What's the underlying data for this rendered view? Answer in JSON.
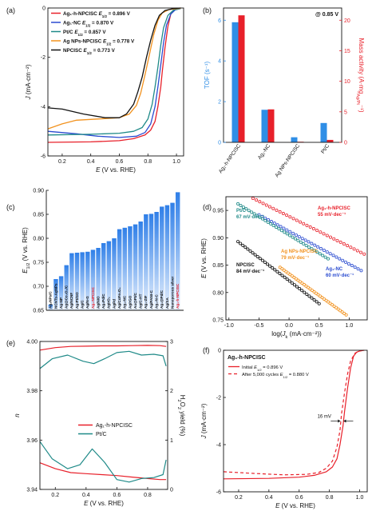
{
  "chart_data": [
    {
      "id": "a",
      "panel_label": "(a)",
      "type": "line",
      "xlabel_main": "E",
      "xlabel_rest": " (V vs. RHE)",
      "ylabel_main": "J",
      "ylabel_rest": " (mA·cm⁻²)",
      "xlim": [
        0.1,
        1.05
      ],
      "ylim": [
        -6,
        0
      ],
      "xticks": [
        0.2,
        0.4,
        0.6,
        0.8,
        1.0
      ],
      "xtick_labels": [
        "0.2",
        "0.4",
        "0.6",
        "0.8",
        "1.0"
      ],
      "yticks": [
        0,
        -2,
        -4,
        -6
      ],
      "ytick_labels": [
        "0",
        "-2",
        "-4",
        "-6"
      ],
      "legend": "top-left",
      "series": [
        {
          "name": "Ag₁-h-NPCISC",
          "e_label": "E",
          "e_sub": "1/2",
          "e_value": " = 0.896 V",
          "color": "#e8202a",
          "points": [
            [
              0.1,
              -5.45
            ],
            [
              0.4,
              -5.43
            ],
            [
              0.6,
              -5.38
            ],
            [
              0.7,
              -5.3
            ],
            [
              0.78,
              -5.15
            ],
            [
              0.82,
              -4.95
            ],
            [
              0.85,
              -4.6
            ],
            [
              0.87,
              -4.0
            ],
            [
              0.89,
              -3.2
            ],
            [
              0.9,
              -2.6
            ],
            [
              0.92,
              -1.6
            ],
            [
              0.94,
              -0.75
            ],
            [
              0.96,
              -0.25
            ],
            [
              0.98,
              -0.08
            ],
            [
              1.0,
              -0.03
            ],
            [
              1.03,
              0.0
            ]
          ]
        },
        {
          "name": "Ag₁-NC",
          "e_label": "E",
          "e_sub": "1/2",
          "e_value": " = 0.870 V",
          "color": "#2a4bd0",
          "points": [
            [
              0.1,
              -5.0
            ],
            [
              0.3,
              -5.1
            ],
            [
              0.45,
              -5.2
            ],
            [
              0.6,
              -5.25
            ],
            [
              0.72,
              -5.2
            ],
            [
              0.78,
              -5.05
            ],
            [
              0.82,
              -4.7
            ],
            [
              0.85,
              -4.0
            ],
            [
              0.87,
              -3.2
            ],
            [
              0.89,
              -2.3
            ],
            [
              0.91,
              -1.4
            ],
            [
              0.93,
              -0.7
            ],
            [
              0.96,
              -0.25
            ],
            [
              0.99,
              -0.08
            ],
            [
              1.03,
              -0.02
            ]
          ]
        },
        {
          "name": "Pt/C",
          "e_label": "E",
          "e_sub": "1/2",
          "e_value": " = 0.857 V",
          "color": "#1f8a88",
          "points": [
            [
              0.1,
              -5.15
            ],
            [
              0.4,
              -5.12
            ],
            [
              0.6,
              -5.08
            ],
            [
              0.7,
              -5.0
            ],
            [
              0.76,
              -4.85
            ],
            [
              0.8,
              -4.5
            ],
            [
              0.83,
              -3.9
            ],
            [
              0.85,
              -3.2
            ],
            [
              0.87,
              -2.4
            ],
            [
              0.89,
              -1.5
            ],
            [
              0.91,
              -0.8
            ],
            [
              0.94,
              -0.3
            ],
            [
              0.98,
              -0.08
            ],
            [
              1.03,
              -0.02
            ]
          ]
        },
        {
          "name": "Ag NPs-NPCISC",
          "e_label": "E",
          "e_sub": "1/2",
          "e_value": " = 0.778 V",
          "color": "#f2921e",
          "points": [
            [
              0.1,
              -4.9
            ],
            [
              0.2,
              -4.7
            ],
            [
              0.3,
              -4.55
            ],
            [
              0.45,
              -4.5
            ],
            [
              0.6,
              -4.45
            ],
            [
              0.67,
              -4.3
            ],
            [
              0.72,
              -3.95
            ],
            [
              0.75,
              -3.45
            ],
            [
              0.78,
              -2.7
            ],
            [
              0.81,
              -1.9
            ],
            [
              0.84,
              -1.1
            ],
            [
              0.87,
              -0.5
            ],
            [
              0.9,
              -0.2
            ],
            [
              0.95,
              -0.06
            ],
            [
              1.03,
              -0.01
            ]
          ]
        },
        {
          "name": "NPCISC",
          "e_label": "E",
          "e_sub": "1/2",
          "e_value": " = 0.773 V",
          "color": "#111111",
          "points": [
            [
              0.1,
              -4.05
            ],
            [
              0.2,
              -4.1
            ],
            [
              0.35,
              -4.3
            ],
            [
              0.5,
              -4.45
            ],
            [
              0.6,
              -4.45
            ],
            [
              0.65,
              -4.3
            ],
            [
              0.7,
              -3.9
            ],
            [
              0.73,
              -3.4
            ],
            [
              0.76,
              -2.8
            ],
            [
              0.79,
              -2.0
            ],
            [
              0.82,
              -1.3
            ],
            [
              0.85,
              -0.7
            ],
            [
              0.88,
              -0.3
            ],
            [
              0.92,
              -0.1
            ],
            [
              0.98,
              -0.02
            ],
            [
              1.03,
              0.0
            ]
          ]
        }
      ]
    },
    {
      "id": "b",
      "panel_label": "(b)",
      "type": "bar",
      "annotation": "@ 0.85 V",
      "categories": [
        "Ag₁-h-NPCISC",
        "Ag₁-NC",
        "Ag NPs-NPCISC",
        "Pt/C"
      ],
      "ylim_left": [
        0,
        6.6
      ],
      "ylim_right": [
        0,
        22
      ],
      "yticks_left": [
        0,
        2,
        4,
        6
      ],
      "ytick_labels_left": [
        "0",
        "2",
        "4",
        "6"
      ],
      "yticks_right": [
        0,
        5,
        10,
        15,
        20
      ],
      "ytick_labels_right": [
        "0",
        "5",
        "10",
        "15",
        "20"
      ],
      "ylabel_left_main": "TOF",
      "ylabel_left_unit": " (s⁻¹)",
      "ylabel_right_main": "Mass activity",
      "ylabel_right_unit": " (A·mg",
      "ylabel_right_sub": "Ag/Pt",
      "ylabel_right_end": "⁻¹)",
      "series": [
        {
          "name": "TOF",
          "axis": "left",
          "color": "#2f8ee6",
          "values": [
            5.9,
            1.6,
            0.25,
            0.95
          ]
        },
        {
          "name": "Mass activity",
          "axis": "right",
          "color": "#e8202a",
          "values": [
            20.8,
            5.4,
            0.1,
            0.4
          ]
        }
      ],
      "left_axis_color": "#2f8ee6",
      "right_axis_color": "#e8202a"
    },
    {
      "id": "c",
      "panel_label": "(c)",
      "type": "bar",
      "ylabel_main": "E",
      "ylabel_sub": "1/2",
      "ylabel_rest": " (V vs. RHE)",
      "ylim": [
        0.65,
        0.9
      ],
      "yticks": [
        0.65,
        0.7,
        0.75,
        0.8,
        0.85,
        0.9
      ],
      "ytick_labels": [
        "0.65",
        "0.70",
        "0.75",
        "0.80",
        "0.85",
        "0.90"
      ],
      "categories": [
        "Ag₂NPs/C",
        "NCNTs-AgNPs",
        "Ag-NP",
        "Ag@Co₃O₄/C",
        "Ag/NCNF",
        "Ag-Pt/GO",
        "Ag/C",
        "Ag/N-G",
        "Ag₁-NPCISC",
        "Ag/NiO",
        "Ag₂Pd/C",
        "AgIrO₂",
        "AgPd",
        "Ag/CoFe₂O₄",
        "Ag₁-NC",
        "Ag/rGO",
        "Au@Pt/C",
        "Ag/C-HT",
        "Ag₁-ZIF",
        "Ag/PANI-C",
        "Ag₁-N-C",
        "Ag₁@Pd/C",
        "Ag/SA",
        "Nanoporous silver",
        "Ag₁-h-NPCISC"
      ],
      "values": [
        0.662,
        0.715,
        0.721,
        0.744,
        0.769,
        0.77,
        0.771,
        0.772,
        0.776,
        0.78,
        0.79,
        0.794,
        0.8,
        0.819,
        0.822,
        0.825,
        0.829,
        0.835,
        0.85,
        0.851,
        0.855,
        0.866,
        0.869,
        0.874,
        0.896
      ],
      "highlight": [
        "Ag₁-NPCISC",
        "Ag₁-h-NPCISC"
      ],
      "label_color": "#111111",
      "highlight_color": "#e8202a"
    },
    {
      "id": "d",
      "panel_label": "(d)",
      "type": "scatter",
      "xlabel_pre": "log(",
      "xlabel_main": "J",
      "xlabel_sub": "k",
      "xlabel_rest": " (mA·cm⁻²))",
      "ylabel_main": "E",
      "ylabel_rest": " (V vs. RHE)",
      "xlim": [
        -1.05,
        1.3
      ],
      "ylim": [
        0.75,
        0.975
      ],
      "xticks": [
        -1.0,
        -0.5,
        0.0,
        0.5,
        1.0
      ],
      "xtick_labels": [
        "-1.0",
        "-0.5",
        "0.0",
        "0.5",
        "1.0"
      ],
      "yticks": [
        0.75,
        0.8,
        0.85,
        0.9,
        0.95
      ],
      "ytick_labels": [
        "0.75",
        "0.80",
        "0.85",
        "0.90",
        "0.95"
      ],
      "series": [
        {
          "name": "Ag₁-h-NPCISC",
          "slope_label": "55 mV·dec⁻¹",
          "color": "#e8202a",
          "x_range": [
            -0.6,
            1.25
          ],
          "y_start": 0.972,
          "slope": -0.055
        },
        {
          "name": "Ag₁-NC",
          "slope_label": "60 mV·dec⁻¹",
          "color": "#2a4bd0",
          "x_range": [
            -0.5,
            1.2
          ],
          "y_start": 0.942,
          "slope": -0.06
        },
        {
          "name": "Pt/C",
          "slope_label": "67 mV·dec⁻¹",
          "color": "#1f8a88",
          "x_range": [
            -0.85,
            0.65
          ],
          "y_start": 0.962,
          "slope": -0.067
        },
        {
          "name": "Ag NPs-NPCISC",
          "slope_label": "79 mV·dec⁻¹",
          "color": "#f2921e",
          "x_range": [
            -0.15,
            0.95
          ],
          "y_start": 0.846,
          "slope": -0.079
        },
        {
          "name": "NPCISC",
          "slope_label": "84 mV·dec⁻¹",
          "color": "#111111",
          "x_range": [
            -0.85,
            0.5
          ],
          "y_start": 0.893,
          "slope": -0.084
        }
      ]
    },
    {
      "id": "e",
      "panel_label": "(e)",
      "type": "line",
      "xlabel_main": "E",
      "xlabel_rest": " (V vs. RHE)",
      "ylabel_left": "n",
      "ylabel_right_pre": "H",
      "ylabel_right_sub1": "2",
      "ylabel_right_mid": "O",
      "ylabel_right_sub2": "2",
      "ylabel_right_end": " yield (%)",
      "xlim": [
        0.1,
        0.93
      ],
      "ylim_left": [
        3.94,
        4.0
      ],
      "ylim_right": [
        0,
        3
      ],
      "xticks": [
        0.2,
        0.4,
        0.6,
        0.8
      ],
      "xtick_labels": [
        "0.2",
        "0.4",
        "0.6",
        "0.8"
      ],
      "yticks_left": [
        3.94,
        3.96,
        3.98,
        4.0
      ],
      "ytick_labels_left": [
        "3.94",
        "3.96",
        "3.98",
        "4.00"
      ],
      "yticks_right": [
        0,
        1,
        2,
        3
      ],
      "ytick_labels_right": [
        "0",
        "1",
        "2",
        "3"
      ],
      "legend": "lower-left",
      "series": [
        {
          "name": "Ag₁-h-NPCISC",
          "color": "#e8202a",
          "axis_n": [
            [
              0.1,
              3.9965
            ],
            [
              0.2,
              3.9975
            ],
            [
              0.3,
              3.998
            ],
            [
              0.4,
              3.9981
            ],
            [
              0.5,
              3.9982
            ],
            [
              0.6,
              3.9982
            ],
            [
              0.7,
              3.9983
            ],
            [
              0.8,
              3.9984
            ],
            [
              0.88,
              3.9983
            ],
            [
              0.92,
              3.998
            ]
          ],
          "axis_h2o2": [
            [
              0.1,
              0.54
            ],
            [
              0.2,
              0.42
            ],
            [
              0.3,
              0.34
            ],
            [
              0.4,
              0.32
            ],
            [
              0.5,
              0.3
            ],
            [
              0.6,
              0.28
            ],
            [
              0.7,
              0.25
            ],
            [
              0.8,
              0.22
            ],
            [
              0.88,
              0.2
            ],
            [
              0.92,
              0.2
            ]
          ]
        },
        {
          "name": "Pt/C",
          "color": "#1f8a88",
          "axis_n": [
            [
              0.1,
              3.989
            ],
            [
              0.18,
              3.993
            ],
            [
              0.28,
              3.9945
            ],
            [
              0.38,
              3.992
            ],
            [
              0.45,
              3.991
            ],
            [
              0.52,
              3.993
            ],
            [
              0.6,
              3.9955
            ],
            [
              0.68,
              3.996
            ],
            [
              0.76,
              3.9945
            ],
            [
              0.84,
              3.9948
            ],
            [
              0.9,
              3.9942
            ],
            [
              0.92,
              3.99
            ]
          ],
          "axis_h2o2": [
            [
              0.1,
              0.97
            ],
            [
              0.18,
              0.62
            ],
            [
              0.28,
              0.42
            ],
            [
              0.36,
              0.5
            ],
            [
              0.44,
              0.82
            ],
            [
              0.52,
              0.55
            ],
            [
              0.6,
              0.2
            ],
            [
              0.68,
              0.15
            ],
            [
              0.76,
              0.22
            ],
            [
              0.84,
              0.24
            ],
            [
              0.9,
              0.3
            ],
            [
              0.92,
              0.6
            ]
          ]
        }
      ]
    },
    {
      "id": "f",
      "panel_label": "(f)",
      "type": "line",
      "inner_title": "Ag₁-h-NPCISC",
      "xlabel_main": "E",
      "xlabel_rest": " (V vs. RHE)",
      "ylabel_main": "J",
      "ylabel_rest": " (mA·cm⁻²)",
      "xlim": [
        0.1,
        1.05
      ],
      "ylim": [
        -6,
        0
      ],
      "xticks": [
        0.2,
        0.4,
        0.6,
        0.8,
        1.0
      ],
      "xtick_labels": [
        "0.2",
        "0.4",
        "0.6",
        "0.8",
        "1.0"
      ],
      "yticks": [
        0,
        -2,
        -4,
        -6
      ],
      "ytick_labels": [
        "0",
        "-2",
        "-4",
        "-6"
      ],
      "annotation": "16 mV",
      "series": [
        {
          "name": "Initial",
          "e_label": "E",
          "e_sub": "1/2",
          "e_value": " = 0.896 V",
          "color": "#e8202a",
          "dash": "none",
          "points": [
            [
              0.1,
              -5.45
            ],
            [
              0.4,
              -5.43
            ],
            [
              0.6,
              -5.38
            ],
            [
              0.7,
              -5.3
            ],
            [
              0.78,
              -5.15
            ],
            [
              0.82,
              -4.95
            ],
            [
              0.85,
              -4.6
            ],
            [
              0.87,
              -4.0
            ],
            [
              0.89,
              -3.2
            ],
            [
              0.9,
              -2.6
            ],
            [
              0.92,
              -1.6
            ],
            [
              0.94,
              -0.75
            ],
            [
              0.96,
              -0.25
            ],
            [
              0.98,
              -0.08
            ],
            [
              1.0,
              -0.03
            ],
            [
              1.03,
              0.0
            ]
          ]
        },
        {
          "name": "After 5,000 cycles",
          "e_label": "E",
          "e_sub": "1/2",
          "e_value": " = 0.880 V",
          "color": "#e8202a",
          "dash": "4,3",
          "points": [
            [
              0.1,
              -5.15
            ],
            [
              0.3,
              -5.22
            ],
            [
              0.5,
              -5.28
            ],
            [
              0.65,
              -5.26
            ],
            [
              0.73,
              -5.18
            ],
            [
              0.78,
              -5.0
            ],
            [
              0.82,
              -4.7
            ],
            [
              0.85,
              -4.1
            ],
            [
              0.87,
              -3.4
            ],
            [
              0.88,
              -2.7
            ],
            [
              0.9,
              -1.8
            ],
            [
              0.92,
              -1.0
            ],
            [
              0.94,
              -0.45
            ],
            [
              0.97,
              -0.12
            ],
            [
              1.0,
              -0.03
            ],
            [
              1.03,
              0.0
            ]
          ]
        }
      ]
    }
  ]
}
